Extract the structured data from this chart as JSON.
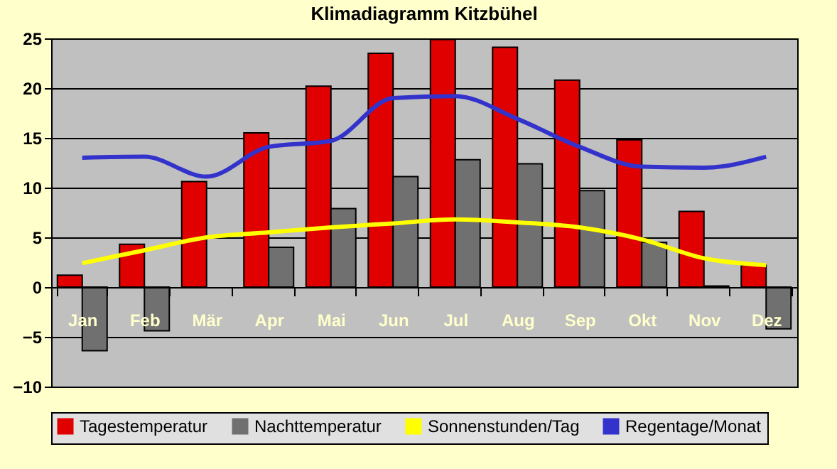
{
  "chart_data": {
    "type": "bar",
    "title": "Klimadiagramm Kitzbühel",
    "categories": [
      "Jan",
      "Feb",
      "Mär",
      "Apr",
      "Mai",
      "Jun",
      "Jul",
      "Aug",
      "Sep",
      "Okt",
      "Nov",
      "Dez"
    ],
    "series": [
      {
        "name": "Tagestemperatur",
        "color": "#e00000",
        "values": [
          1.2,
          4.3,
          10.6,
          15.5,
          20.2,
          23.5,
          24.9,
          24.1,
          20.8,
          14.8,
          7.6,
          2.2
        ]
      },
      {
        "name": "Nachttemperatur",
        "color": "#707070",
        "values": [
          -6.4,
          -4.4,
          null,
          4.0,
          7.9,
          11.1,
          12.8,
          12.4,
          9.7,
          4.5,
          0.1,
          -4.2
        ]
      },
      {
        "name": "Sonnenstunden/Tag",
        "type": "line",
        "color": "#ffff00",
        "values": [
          2.4,
          3.7,
          5.0,
          5.5,
          6.0,
          6.4,
          6.8,
          6.5,
          6.0,
          4.8,
          2.9,
          2.2
        ]
      },
      {
        "name": "Regentage/Monat",
        "type": "line",
        "color": "#3333cc",
        "values": [
          13.0,
          13.1,
          11.1,
          14.1,
          14.7,
          19.0,
          19.2,
          16.9,
          14.1,
          12.1,
          12.0,
          13.1
        ]
      }
    ],
    "ylim": [
      -10,
      25
    ],
    "yticks": [
      -10,
      -5,
      0,
      5,
      10,
      15,
      20,
      25
    ],
    "grid": "y",
    "legend": "bottom"
  }
}
